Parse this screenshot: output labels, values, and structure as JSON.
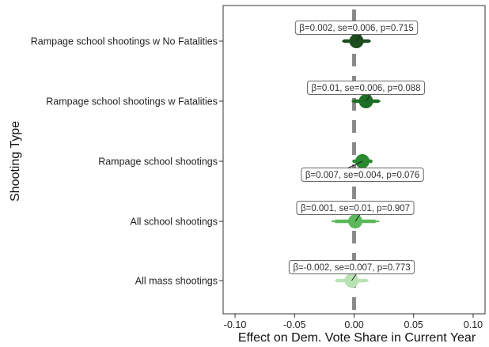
{
  "chart_data": {
    "type": "coefficient-forest",
    "xlabel": "Effect on Dem. Vote Share in Current Year",
    "ylabel": "Shooting Type",
    "xlim": [
      -0.11,
      0.11
    ],
    "x_ticks": [
      -0.1,
      -0.05,
      0.0,
      0.05,
      0.1
    ],
    "x_tick_labels": [
      "-0.10",
      "-0.05",
      "0.00",
      "0.05",
      "0.10"
    ],
    "reference_line": 0,
    "grid": false,
    "categories": [
      "Rampage school shootings w No Fatalities",
      "Rampage school shootings w Fatalities",
      "Rampage school shootings",
      "All school shootings",
      "All mass shootings"
    ],
    "series": [
      {
        "category": "Rampage school shootings w No Fatalities",
        "estimate": 0.002,
        "se": 0.006,
        "p": 0.715,
        "ci90": [
          -0.008,
          0.012
        ],
        "ci95": [
          -0.01,
          0.014
        ],
        "color": "#1b4d1f",
        "label": "β=0.002, se=0.006, p=0.715",
        "label_side": "above"
      },
      {
        "category": "Rampage school shootings w Fatalities",
        "estimate": 0.01,
        "se": 0.006,
        "p": 0.088,
        "ci90": [
          0.0,
          0.02
        ],
        "ci95": [
          -0.002,
          0.022
        ],
        "color": "#1d6e26",
        "label": "β=0.01, se=0.006, p=0.088",
        "label_side": "above"
      },
      {
        "category": "Rampage school shootings",
        "estimate": 0.007,
        "se": 0.004,
        "p": 0.076,
        "ci90": [
          0.0,
          0.014
        ],
        "ci95": [
          -0.001,
          0.015
        ],
        "color": "#2a8a30",
        "label": "β=0.007, se=0.004, p=0.076",
        "label_side": "below"
      },
      {
        "category": "All school shootings",
        "estimate": 0.001,
        "se": 0.01,
        "p": 0.907,
        "ci90": [
          -0.015,
          0.017
        ],
        "ci95": [
          -0.019,
          0.021
        ],
        "color": "#5cb85c",
        "label": "β=0.001, se=0.01, p=0.907",
        "label_side": "above"
      },
      {
        "category": "All mass shootings",
        "estimate": -0.002,
        "se": 0.007,
        "p": 0.773,
        "ci90": [
          -0.014,
          0.01
        ],
        "ci95": [
          -0.016,
          0.012
        ],
        "color": "#b9e3b4",
        "label": "β=-0.002, se=0.007, p=0.773",
        "label_side": "above"
      }
    ]
  }
}
